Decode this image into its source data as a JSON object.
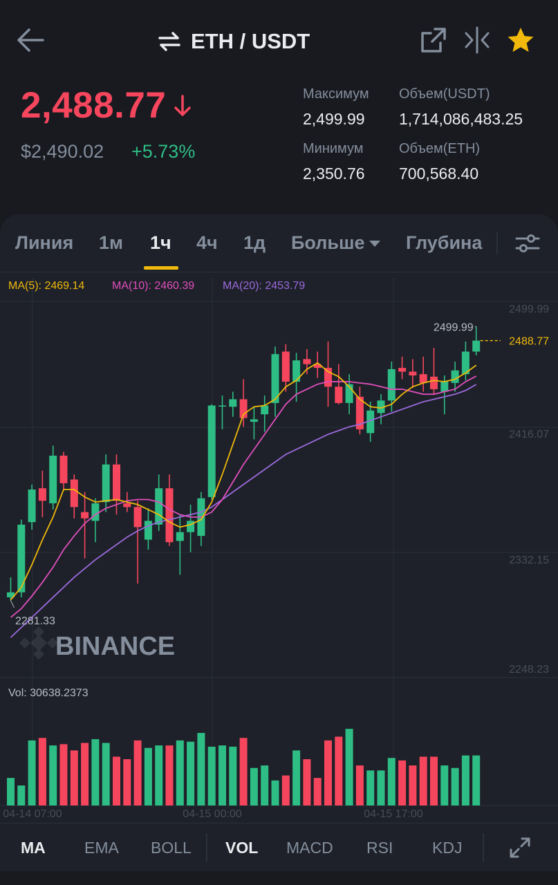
{
  "header": {
    "pair": "ETH / USDT",
    "icons": {
      "back": "arrow-left-icon",
      "swap": "swap-arrows-icon",
      "external": "external-link-icon",
      "compare": "compare-icon",
      "favorite": "star-icon"
    }
  },
  "ticker": {
    "last_price": "2,488.77",
    "direction": "down",
    "usd_price": "$2,490.02",
    "change_pct": "+5.73%",
    "high_label": "Максимум",
    "high_value": "2,499.99",
    "low_label": "Минимум",
    "low_value": "2,350.76",
    "vol_quote_label": "Объем(USDT)",
    "vol_quote_value": "1,714,086,483.25",
    "vol_base_label": "Объем(ETH)",
    "vol_base_value": "700,568.40"
  },
  "timeframe_tabs": {
    "items": [
      "Линия",
      "1м",
      "1ч",
      "4ч",
      "1д",
      "Больше",
      "Глубина"
    ],
    "active": "1ч"
  },
  "indicator_tabs": {
    "main": [
      "MA",
      "EMA",
      "BOLL"
    ],
    "sub": [
      "VOL",
      "MACD",
      "RSI",
      "KDJ"
    ],
    "active_main": "MA",
    "active_sub": "VOL"
  },
  "colors": {
    "up": "#2ebd85",
    "down": "#f6465d",
    "ma5": "#f0b90b",
    "ma10": "#e04fbd",
    "ma20": "#9c6ade",
    "accent": "#f0b90b",
    "background": "#181a20",
    "panel": "#1e2129"
  },
  "chart_data": {
    "type": "candlestick",
    "interval": "1h",
    "watermark": "BINANCE",
    "legend": {
      "ma5": "MA(5): 2469.14",
      "ma10": "MA(10): 2460.39",
      "ma20": "MA(20): 2453.79"
    },
    "y_ticks": [
      "2499.99",
      "2416.07",
      "2332.15",
      "2248.23"
    ],
    "y_tick_values": [
      2499.99,
      2416.07,
      2332.15,
      2248.23
    ],
    "ylim": [
      2220,
      2520
    ],
    "x_ticks": [
      "04-14 07:00",
      "04-15 00:00",
      "04-15 17:00"
    ],
    "x_tick_index": [
      0,
      17,
      34
    ],
    "high_marker": "2499.99",
    "low_marker": "2281.33",
    "last_price_label": "2488.77",
    "last_price": 2488.77,
    "candles": [
      {
        "o": 2284,
        "h": 2300,
        "l": 2281.33,
        "c": 2288
      },
      {
        "o": 2288,
        "h": 2346,
        "l": 2284,
        "c": 2342
      },
      {
        "o": 2344,
        "h": 2374,
        "l": 2338,
        "c": 2370
      },
      {
        "o": 2371,
        "h": 2385,
        "l": 2348,
        "c": 2361
      },
      {
        "o": 2359,
        "h": 2405,
        "l": 2354,
        "c": 2397
      },
      {
        "o": 2397,
        "h": 2400,
        "l": 2370,
        "c": 2375
      },
      {
        "o": 2378,
        "h": 2382,
        "l": 2347,
        "c": 2356
      },
      {
        "o": 2352,
        "h": 2368,
        "l": 2315,
        "c": 2347
      },
      {
        "o": 2345,
        "h": 2363,
        "l": 2328,
        "c": 2359
      },
      {
        "o": 2360,
        "h": 2398,
        "l": 2352,
        "c": 2390
      },
      {
        "o": 2390,
        "h": 2398,
        "l": 2350,
        "c": 2361
      },
      {
        "o": 2359,
        "h": 2368,
        "l": 2352,
        "c": 2356
      },
      {
        "o": 2356,
        "h": 2361,
        "l": 2295,
        "c": 2340
      },
      {
        "o": 2330,
        "h": 2355,
        "l": 2322,
        "c": 2345
      },
      {
        "o": 2342,
        "h": 2382,
        "l": 2337,
        "c": 2371
      },
      {
        "o": 2371,
        "h": 2382,
        "l": 2325,
        "c": 2328
      },
      {
        "o": 2329,
        "h": 2350,
        "l": 2302,
        "c": 2336
      },
      {
        "o": 2336,
        "h": 2358,
        "l": 2320,
        "c": 2345
      },
      {
        "o": 2333,
        "h": 2368,
        "l": 2325,
        "c": 2363
      },
      {
        "o": 2364,
        "h": 2438,
        "l": 2362,
        "c": 2437
      },
      {
        "o": 2437,
        "h": 2445,
        "l": 2418,
        "c": 2437
      },
      {
        "o": 2436,
        "h": 2448,
        "l": 2428,
        "c": 2442
      },
      {
        "o": 2442,
        "h": 2458,
        "l": 2420,
        "c": 2427
      },
      {
        "o": 2424,
        "h": 2436,
        "l": 2410,
        "c": 2426
      },
      {
        "o": 2430,
        "h": 2445,
        "l": 2416,
        "c": 2437
      },
      {
        "o": 2439,
        "h": 2484,
        "l": 2428,
        "c": 2478
      },
      {
        "o": 2480,
        "h": 2486,
        "l": 2448,
        "c": 2456
      },
      {
        "o": 2456,
        "h": 2479,
        "l": 2440,
        "c": 2473
      },
      {
        "o": 2474,
        "h": 2482,
        "l": 2462,
        "c": 2470
      },
      {
        "o": 2470,
        "h": 2480,
        "l": 2459,
        "c": 2467
      },
      {
        "o": 2467,
        "h": 2488,
        "l": 2436,
        "c": 2452
      },
      {
        "o": 2452,
        "h": 2470,
        "l": 2438,
        "c": 2439
      },
      {
        "o": 2439,
        "h": 2462,
        "l": 2430,
        "c": 2454
      },
      {
        "o": 2444,
        "h": 2452,
        "l": 2414,
        "c": 2418
      },
      {
        "o": 2415,
        "h": 2440,
        "l": 2408,
        "c": 2433
      },
      {
        "o": 2431,
        "h": 2446,
        "l": 2422,
        "c": 2441
      },
      {
        "o": 2441,
        "h": 2472,
        "l": 2432,
        "c": 2466
      },
      {
        "o": 2467,
        "h": 2476,
        "l": 2458,
        "c": 2464
      },
      {
        "o": 2464,
        "h": 2474,
        "l": 2451,
        "c": 2461
      },
      {
        "o": 2462,
        "h": 2476,
        "l": 2448,
        "c": 2455
      },
      {
        "o": 2460,
        "h": 2483,
        "l": 2446,
        "c": 2450
      },
      {
        "o": 2448,
        "h": 2461,
        "l": 2430,
        "c": 2456
      },
      {
        "o": 2455,
        "h": 2472,
        "l": 2448,
        "c": 2465
      },
      {
        "o": 2462,
        "h": 2488,
        "l": 2457,
        "c": 2480
      },
      {
        "o": 2480,
        "h": 2499.99,
        "l": 2477,
        "c": 2488.77
      }
    ],
    "ma5": [
      2282,
      2292,
      2310,
      2330,
      2348,
      2370,
      2370,
      2364,
      2360,
      2361,
      2362,
      2360,
      2358,
      2354,
      2350,
      2344,
      2340,
      2342,
      2346,
      2360,
      2382,
      2406,
      2430,
      2436,
      2437,
      2442,
      2452,
      2457,
      2466,
      2471,
      2464,
      2460,
      2452,
      2442,
      2436,
      2435,
      2438,
      2446,
      2452,
      2455,
      2457,
      2456,
      2458,
      2463,
      2469.14
    ],
    "ma10": [
      2268,
      2275,
      2285,
      2296,
      2308,
      2322,
      2333,
      2343,
      2350,
      2355,
      2358,
      2361,
      2362,
      2362,
      2360,
      2354,
      2350,
      2348,
      2348,
      2352,
      2362,
      2376,
      2390,
      2402,
      2414,
      2426,
      2438,
      2446,
      2450,
      2454,
      2456,
      2456,
      2456,
      2455,
      2454,
      2452,
      2450,
      2450,
      2448,
      2446,
      2446,
      2448,
      2450,
      2456,
      2460.39
    ],
    "ma20": [
      2252,
      2260,
      2268,
      2276,
      2284,
      2292,
      2300,
      2307,
      2314,
      2320,
      2326,
      2332,
      2337,
      2341,
      2344,
      2346,
      2348,
      2350,
      2352,
      2356,
      2362,
      2368,
      2374,
      2380,
      2386,
      2392,
      2398,
      2402,
      2406,
      2410,
      2414,
      2417,
      2420,
      2422,
      2425,
      2428,
      2431,
      2434,
      2437,
      2440,
      2442,
      2444,
      2446,
      2449,
      2453.79
    ],
    "volume_label": "Vol: 30638.2373",
    "volume_ylim": [
      0,
      42000
    ],
    "volume": [
      11000,
      8000,
      26000,
      27000,
      24000,
      24500,
      22000,
      25000,
      26500,
      25000,
      19500,
      18500,
      26000,
      23000,
      24000,
      24000,
      26000,
      25500,
      29000,
      23500,
      24000,
      23500,
      27000,
      15000,
      16000,
      10000,
      12000,
      22000,
      18500,
      11000,
      26000,
      27500,
      30638.2373,
      16000,
      14000,
      14000,
      19000,
      18000,
      16000,
      19500,
      19500,
      16000,
      15000,
      20000,
      20000
    ]
  }
}
